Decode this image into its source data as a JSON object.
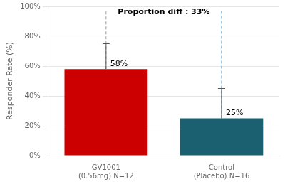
{
  "chart_data": {
    "type": "bar",
    "categories": [
      "GV1001\n(0.56mg) N=12",
      "Control\n(Placebo) N=16"
    ],
    "values": [
      58,
      25
    ],
    "value_labels": [
      "58%",
      "25%"
    ],
    "data_labels": true,
    "errors_upper": [
      17,
      20
    ],
    "colors": [
      "#cc0000",
      "#1a6070"
    ],
    "ylabel": "Responder Rate (%)",
    "ylim": [
      0,
      100
    ],
    "yticks": [
      {
        "value": 0,
        "label": "0%"
      },
      {
        "value": 20,
        "label": "20%"
      },
      {
        "value": 40,
        "label": "40%"
      },
      {
        "value": 60,
        "label": "60%"
      },
      {
        "value": 80,
        "label": "80%"
      },
      {
        "value": 100,
        "label": "100%"
      }
    ],
    "grid": true,
    "annotations": [
      "Proportion diff : 33%"
    ],
    "dashed_line_top": 97,
    "dashed_line_colors": [
      "#999999",
      "#5599cc"
    ]
  }
}
